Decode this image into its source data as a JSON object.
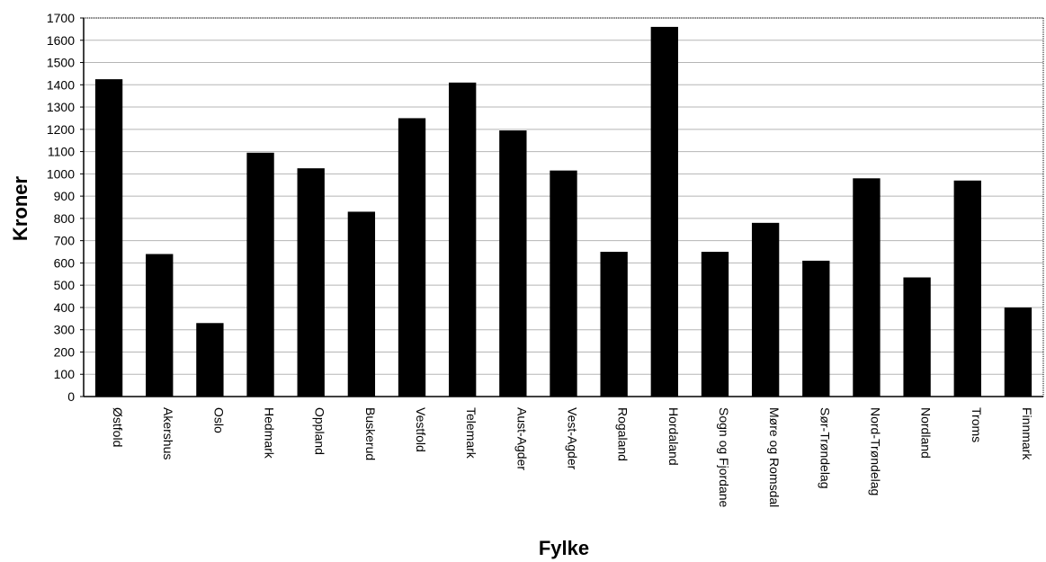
{
  "chart_data": {
    "type": "bar",
    "title": "",
    "xlabel": "Fylke",
    "ylabel": "Kroner",
    "ylim": [
      0,
      1700
    ],
    "y_ticks": [
      "0",
      "100",
      "200",
      "300",
      "400",
      "500",
      "600",
      "700",
      "800",
      "900",
      "1000",
      "1100",
      "1200",
      "1300",
      "1400",
      "1500",
      "1600",
      "1700"
    ],
    "grid": true,
    "legend": "none",
    "categories": [
      "Østfold",
      "Akershus",
      "Oslo",
      "Hedmark",
      "Oppland",
      "Buskerud",
      "Vestfold",
      "Telemark",
      "Aust-Agder",
      "Vest-Agder",
      "Rogaland",
      "Hordaland",
      "Sogn og Fjordane",
      "Møre og Romsdal",
      "Sør-Trøndelag",
      "Nord-Trøndelag",
      "Nordland",
      "Troms",
      "Finnmark"
    ],
    "values": [
      1425,
      640,
      330,
      1095,
      1025,
      830,
      1250,
      1410,
      1195,
      1015,
      650,
      1660,
      650,
      780,
      610,
      980,
      535,
      970,
      400
    ],
    "bar_color": "#000000",
    "grid_color": "#b5b5b5"
  }
}
